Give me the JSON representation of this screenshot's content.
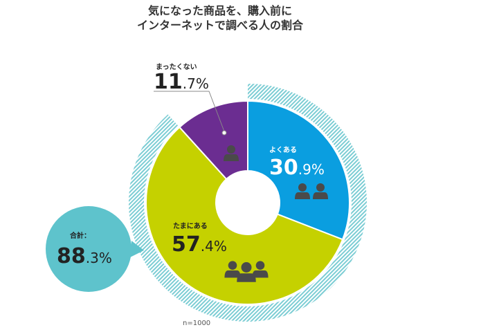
{
  "title_lines": [
    "気になった商品を、購入前に",
    "インターネットで調べる人の割合"
  ],
  "sample_note": "n=1000",
  "chart_data": {
    "type": "pie",
    "title": "気になった商品を、購入前にインターネットで調べる人の割合",
    "unit": "%",
    "slices": [
      {
        "label": "よくある",
        "int": "30",
        "dec": ".9",
        "pct": "%",
        "value": 30.9,
        "color": "#0a9ee0"
      },
      {
        "label": "たまにある",
        "int": "57",
        "dec": ".4",
        "pct": "%",
        "value": 57.4,
        "color": "#c5d100"
      },
      {
        "label": "まったくない",
        "int": "11",
        "dec": ".7",
        "pct": "%",
        "value": 11.7,
        "color": "#6b2d91"
      }
    ],
    "total": {
      "label": "合計：",
      "int": "88",
      "dec": ".3",
      "pct": "%",
      "value": 88.3,
      "color": "#5ec3cc"
    }
  }
}
